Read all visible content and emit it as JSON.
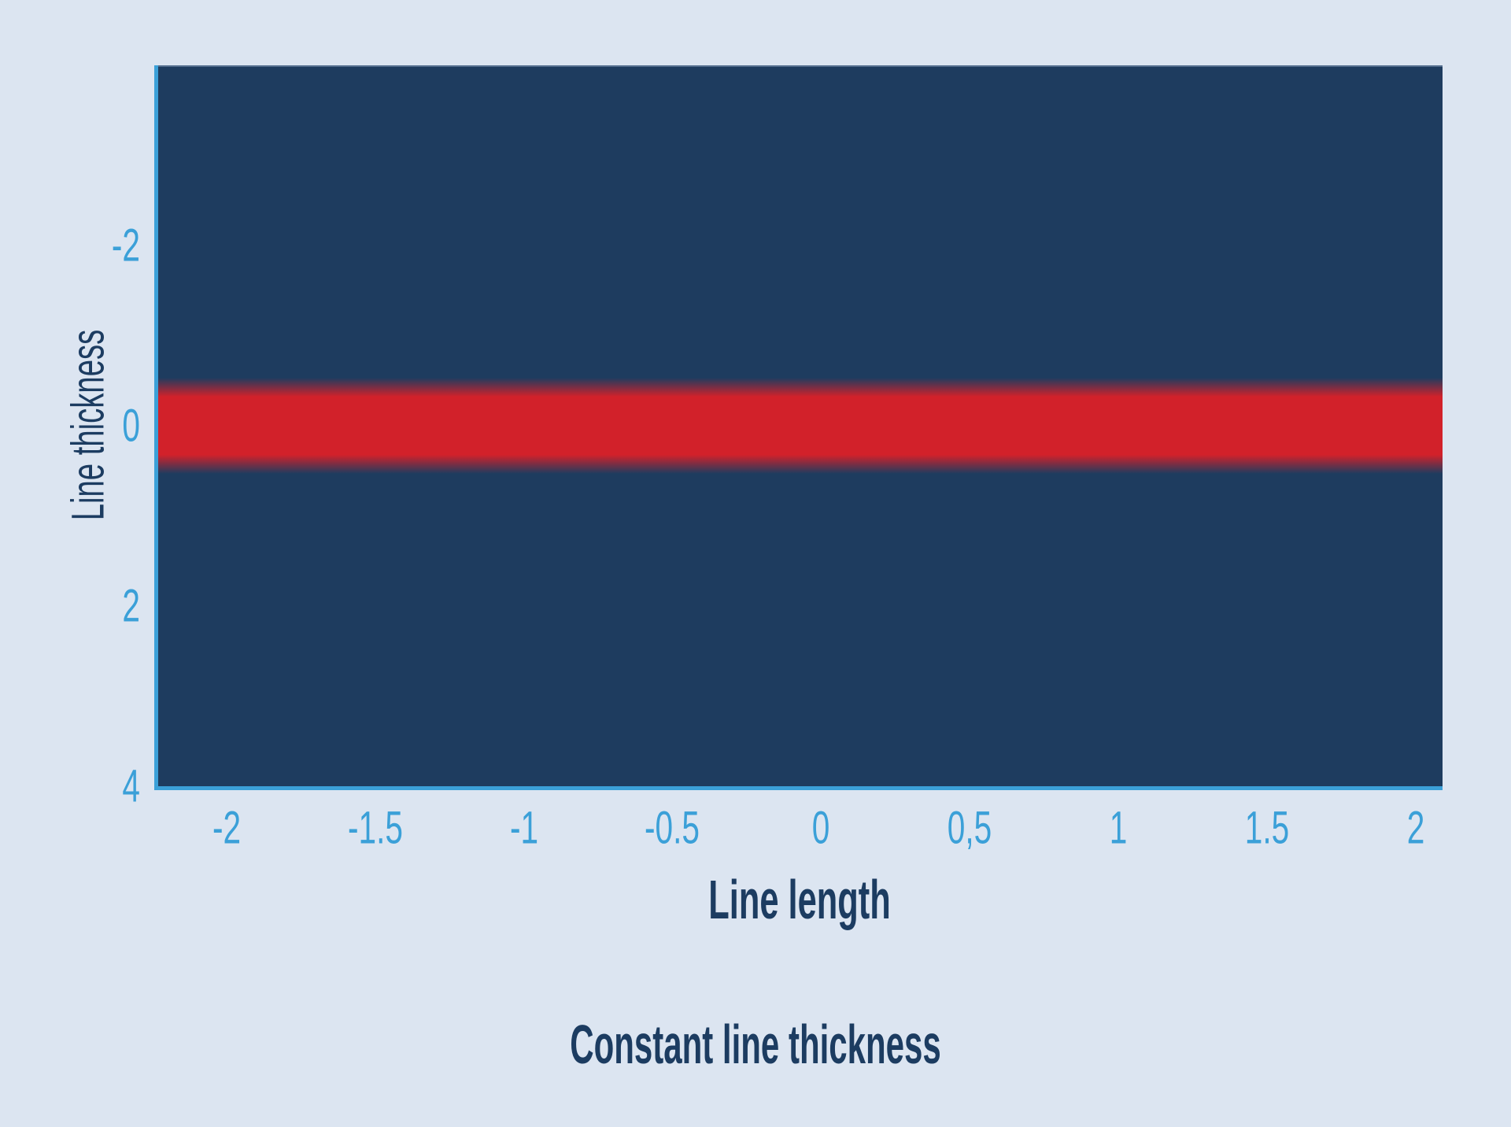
{
  "chart_data": {
    "type": "heatmap",
    "title": "",
    "xlabel": "Line length",
    "ylabel": "Line thickness",
    "caption": "Constant line thickness",
    "legend": "none",
    "grid": false,
    "x_axis": {
      "min": -2.24,
      "max": 2.09,
      "ticks": [
        {
          "value": -2,
          "label": "-2"
        },
        {
          "value": -1.5,
          "label": "-1.5"
        },
        {
          "value": -1,
          "label": "-1"
        },
        {
          "value": -0.5,
          "label": "-0.5"
        },
        {
          "value": 0,
          "label": "0"
        },
        {
          "value": 0.5,
          "label": "0,5"
        },
        {
          "value": 1,
          "label": "1"
        },
        {
          "value": 1.5,
          "label": "1.5"
        },
        {
          "value": 2,
          "label": "2"
        }
      ]
    },
    "y_axis": {
      "top_value": -4,
      "bottom_value": 4,
      "inverted": true,
      "ticks": [
        {
          "value": -2,
          "label": "-2"
        },
        {
          "value": 0,
          "label": "0"
        },
        {
          "value": 2,
          "label": "2"
        },
        {
          "value": 4,
          "label": "4"
        }
      ]
    },
    "series": [
      {
        "name": "constant-thickness-line",
        "shape": "horizontal-band",
        "y_center": 0,
        "solid_half_thickness": 0.32,
        "blur_half_thickness": 0.53,
        "x_extent": "full-width"
      }
    ],
    "colors": {
      "page_background": "#dce5f1",
      "plot_background": "#1e3c5f",
      "band": "#d2212a",
      "axis": "#3ba0d8",
      "tick_labels": "#3ba0d8",
      "axis_titles": "#1c3c61"
    }
  }
}
